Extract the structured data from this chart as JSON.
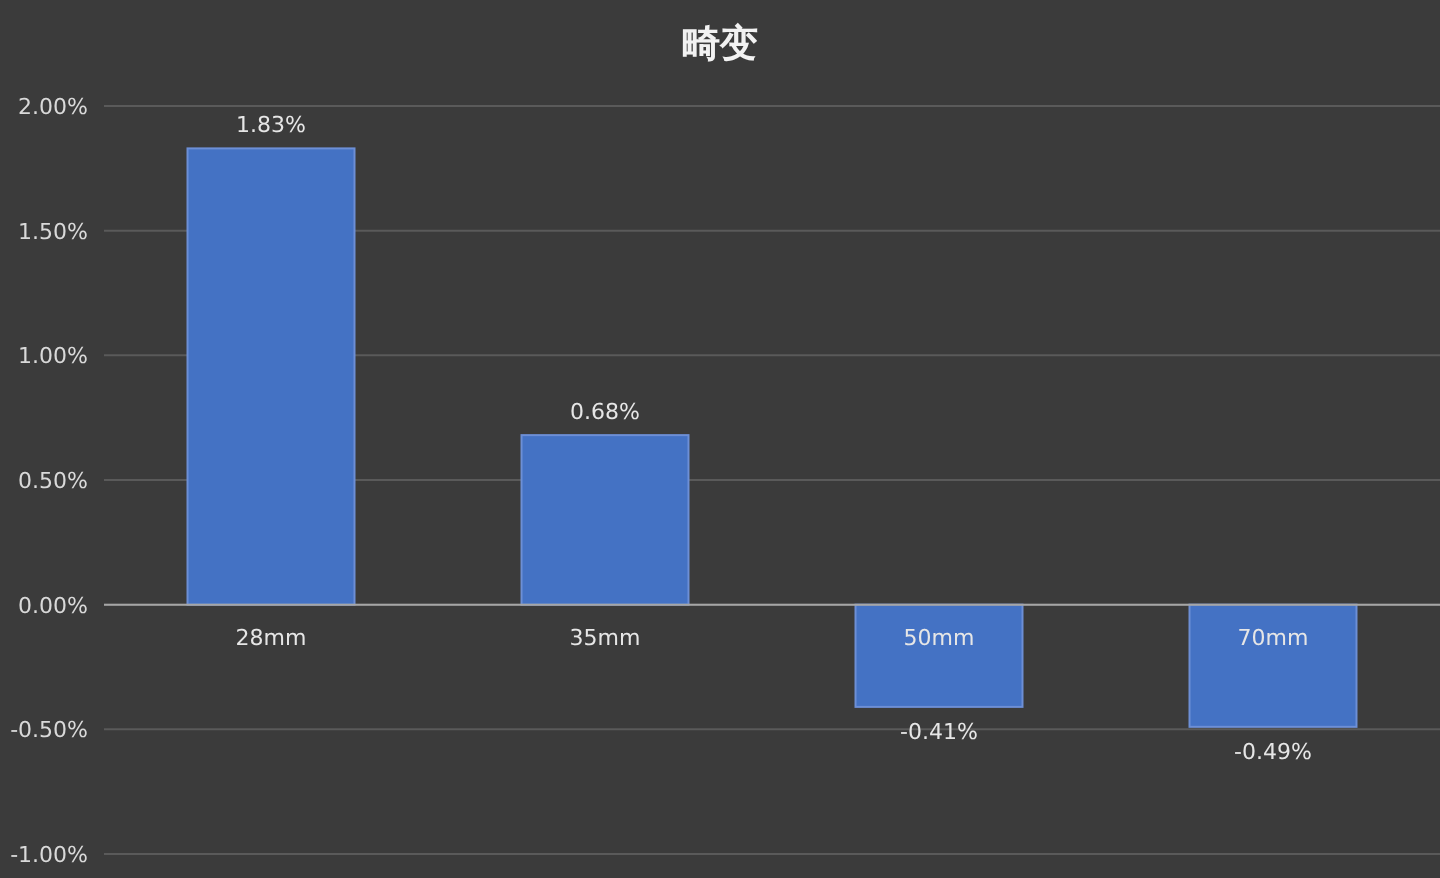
{
  "chart_data": {
    "type": "bar",
    "title": "畸变",
    "categories": [
      "28mm",
      "35mm",
      "50mm",
      "70mm"
    ],
    "values": [
      1.83,
      0.68,
      -0.41,
      -0.49
    ],
    "value_labels": [
      "1.83%",
      "0.68%",
      "-0.41%",
      "-0.49%"
    ],
    "color": "#4472c4",
    "ylim": [
      -1,
      2
    ],
    "yticks": [
      {
        "value": -1,
        "label": "-1.00%"
      },
      {
        "value": -0.5,
        "label": "-0.50%"
      },
      {
        "value": 0,
        "label": "0.00%"
      },
      {
        "value": 0.5,
        "label": "0.50%"
      },
      {
        "value": 1,
        "label": "1.00%"
      },
      {
        "value": 1.5,
        "label": "1.50%"
      },
      {
        "value": 2,
        "label": "2.00%"
      }
    ],
    "grid": "y"
  }
}
